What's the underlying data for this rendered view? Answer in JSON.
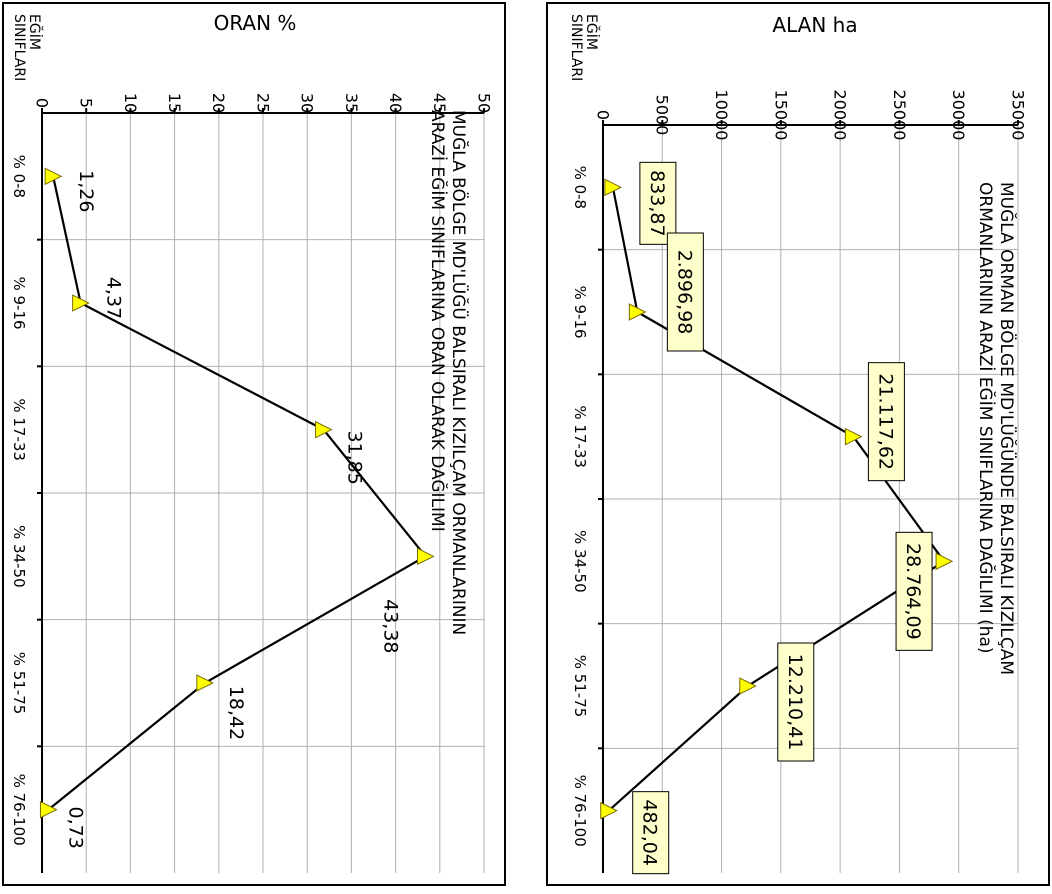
{
  "colors": {
    "marker": "#ffff00",
    "marker_stroke": "#7a6a00",
    "label_bg": "#ffffcc",
    "grid": "#b0b0b0",
    "line": "#000000"
  },
  "chart_data": [
    {
      "type": "line",
      "title": "MUĞLA ORMAN BÖLGE MD'LÜĞÜNDE BALSIRALI KIZILÇAM ORMANLARININ ARAZİ EĞİM SINIFLARINA DAĞILIMI (ha)",
      "title_lines": [
        "MUĞLA ORMAN BÖLGE MD'LÜĞÜNDE BALSIRALI KIZILÇAM",
        "ORMANLARININ ARAZİ EĞİM SINIFLARINA DAĞILIMI (ha)"
      ],
      "ylabel": "ALAN ha",
      "xlabel_lines": [
        "EĞİM",
        "SINIFLARI"
      ],
      "categories": [
        "% 0-8",
        "% 9-16",
        "% 17-33",
        "% 34-50",
        "% 51-75",
        "% 76-100"
      ],
      "values": [
        833.87,
        2896.98,
        21117.62,
        28764.09,
        12210.41,
        482.04
      ],
      "data_labels": [
        "833,87",
        "2.896,98",
        "21.117,62",
        "28.764,09",
        "12.210,41",
        "482,04"
      ],
      "ylim": [
        0,
        35000
      ],
      "yticks": [
        "0",
        "5000",
        "10000",
        "15000",
        "20000",
        "25000",
        "30000",
        "35000"
      ],
      "grid": true,
      "label_style": "boxed",
      "orientation": "rotated 90° clockwise"
    },
    {
      "type": "line",
      "title": "MUĞLA BÖLGE MD'LÜĞÜ BALSIRALI KIZILÇAM ORMANLARININ ARAZİ EĞİM SINIFLARINA ORAN OLARAK DAĞILIMI",
      "title_lines": [
        "MUĞLA BÖLGE MD'LÜĞÜ BALSIRALI KIZILÇAM ORMANLARININ",
        "ARAZİ EĞİM SINIFLARINA ORAN OLARAK DAĞILIMI"
      ],
      "ylabel": "ORAN  %",
      "xlabel_lines": [
        "EĞİM",
        "SINIFLARI"
      ],
      "categories": [
        "% 0-8",
        "% 9-16",
        "% 17-33",
        "% 34-50",
        "% 51-75",
        "% 76-100"
      ],
      "values": [
        1.26,
        4.37,
        31.85,
        43.38,
        18.42,
        0.73
      ],
      "data_labels": [
        "1,26",
        "4,37",
        "31,85",
        "43,38",
        "18,42",
        "0,73"
      ],
      "ylim": [
        0,
        50
      ],
      "yticks": [
        "0",
        "5",
        "10",
        "15",
        "20",
        "25",
        "30",
        "35",
        "40",
        "45",
        "50"
      ],
      "grid": true,
      "label_style": "plain",
      "orientation": "rotated 90° clockwise"
    }
  ]
}
